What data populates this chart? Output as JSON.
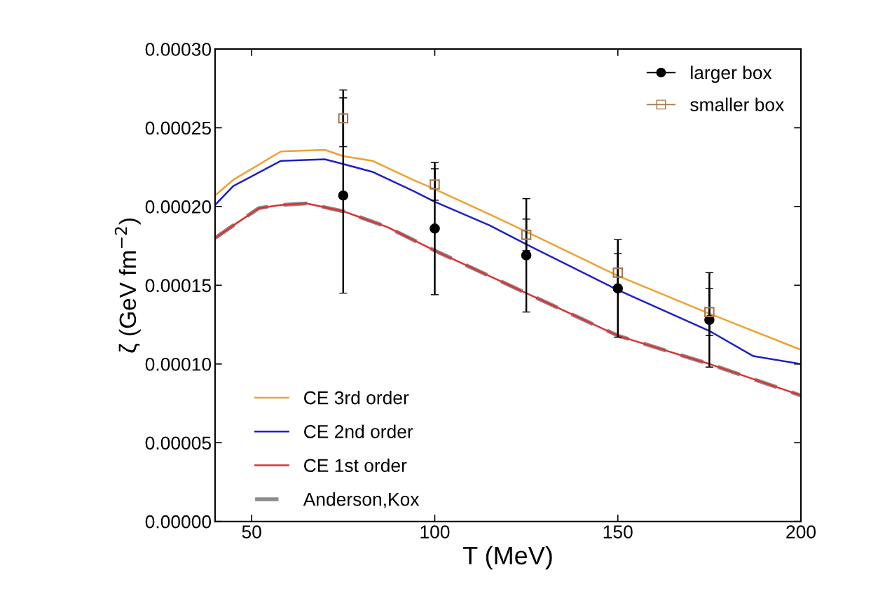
{
  "chart_data": {
    "type": "line",
    "xlabel": "T (MeV)",
    "ylabel": "ζ (GeV fm$^{−2}$)",
    "xlim": [
      40,
      200
    ],
    "xticks": [
      50,
      100,
      150,
      200
    ],
    "ylim": [
      0,
      0.0003
    ],
    "yticks": [
      {
        "value": 0,
        "label": "0.00000"
      },
      {
        "value": 5e-05,
        "label": "0.00005"
      },
      {
        "value": 0.0001,
        "label": "0.00010"
      },
      {
        "value": 0.00015,
        "label": "0.00015"
      },
      {
        "value": 0.0002,
        "label": "0.00020"
      },
      {
        "value": 0.00025,
        "label": "0.00025"
      },
      {
        "value": 0.0003,
        "label": "0.00030"
      }
    ],
    "grid": false,
    "legend": [
      "top right",
      "bottom left"
    ],
    "series": [
      {
        "name": "larger box",
        "type": "scatter",
        "marker": "circle",
        "color": "#000000",
        "x": [
          75,
          100,
          125,
          150,
          175
        ],
        "values": [
          0.000207,
          0.000186,
          0.000169,
          0.000148,
          0.000128
        ],
        "errors": [
          6.2e-05,
          4.2e-05,
          3.6e-05,
          3.1e-05,
          3e-05
        ]
      },
      {
        "name": "smaller box",
        "type": "scatter",
        "marker": "square",
        "color": "#a07850",
        "x": [
          75,
          100,
          125,
          150,
          175
        ],
        "values": [
          0.000256,
          0.000214,
          0.000182,
          0.000158,
          0.000133
        ],
        "errors": [
          1.8e-05,
          1e-05,
          1e-05,
          1.2e-05,
          1.5e-05
        ]
      },
      {
        "name": "CE 3rd order",
        "line_style": "solid",
        "color": "#f0a030",
        "x": [
          40,
          45,
          58,
          70,
          75,
          83,
          94,
          100,
          115,
          125,
          150,
          175,
          200
        ],
        "values": [
          0.000207,
          0.000217,
          0.000235,
          0.000236,
          0.000232,
          0.000229,
          0.000217,
          0.000211,
          0.000195,
          0.000184,
          0.000156,
          0.000132,
          0.000109
        ]
      },
      {
        "name": "CE 2nd order",
        "line_style": "solid",
        "color": "#1f1fc8",
        "x": [
          40,
          45,
          58,
          70,
          75,
          83,
          94,
          100,
          115,
          125,
          150,
          175,
          187,
          200
        ],
        "values": [
          0.000201,
          0.000213,
          0.000229,
          0.00023,
          0.000227,
          0.000222,
          0.00021,
          0.000203,
          0.000188,
          0.000176,
          0.000147,
          0.000121,
          0.000105,
          0.0001
        ]
      },
      {
        "name": "CE 1st order",
        "line_style": "solid",
        "color": "#e03030",
        "x": [
          40,
          45,
          52,
          58,
          65,
          75,
          87,
          100,
          125,
          150,
          175,
          200
        ],
        "values": [
          0.00018,
          0.000188,
          0.000199,
          0.000201,
          0.000202,
          0.000197,
          0.000187,
          0.000172,
          0.000145,
          0.000118,
          0.0001,
          8e-05
        ]
      },
      {
        "name": "Anderson,Kox",
        "line_style": "dashed",
        "color": "#8c8c8c",
        "x": [
          40,
          45,
          52,
          58,
          65,
          75,
          87,
          100,
          125,
          150,
          175,
          200
        ],
        "values": [
          0.00018,
          0.000188,
          0.000199,
          0.000201,
          0.000202,
          0.000197,
          0.000187,
          0.000172,
          0.000145,
          0.000118,
          0.0001,
          8e-05
        ]
      }
    ]
  }
}
